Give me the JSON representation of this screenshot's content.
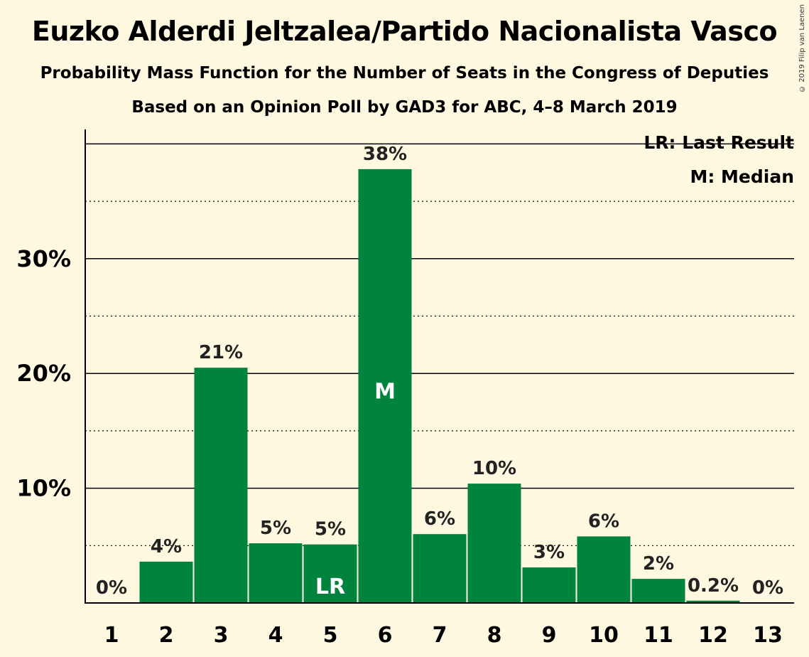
{
  "title": "Euzko Alderdi Jeltzalea/Partido Nacionalista Vasco",
  "subtitle": "Probability Mass Function for the Number of Seats in the Congress of Deputies",
  "subtitle2": "Based on an Opinion Poll by GAD3 for ABC, 4–8 March 2019",
  "copyright": "© 2019 Filip van Laenen",
  "legend": {
    "lr": "LR: Last Result",
    "m": "M: Median"
  },
  "colors": {
    "bar": "#00843D",
    "background": "#FFF8E1"
  },
  "chart_data": {
    "type": "bar",
    "categories": [
      "1",
      "2",
      "3",
      "4",
      "5",
      "6",
      "7",
      "8",
      "9",
      "10",
      "11",
      "12",
      "13"
    ],
    "values": [
      0,
      3.6,
      20.5,
      5.2,
      5.1,
      37.8,
      6.0,
      10.4,
      3.1,
      5.8,
      2.1,
      0.2,
      0
    ],
    "data_labels": [
      "0%",
      "4%",
      "21%",
      "5%",
      "5%",
      "38%",
      "6%",
      "10%",
      "3%",
      "6%",
      "2%",
      "0.2%",
      "0%"
    ],
    "bar_markers": {
      "5": "LR",
      "6": "M"
    },
    "yticks": [
      10,
      20,
      30
    ],
    "ytick_labels": [
      "10%",
      "20%",
      "30%"
    ],
    "ylim": [
      0,
      41
    ],
    "grid": "solid at 10% steps, dotted at 5% steps",
    "legend_position": "top-right"
  }
}
